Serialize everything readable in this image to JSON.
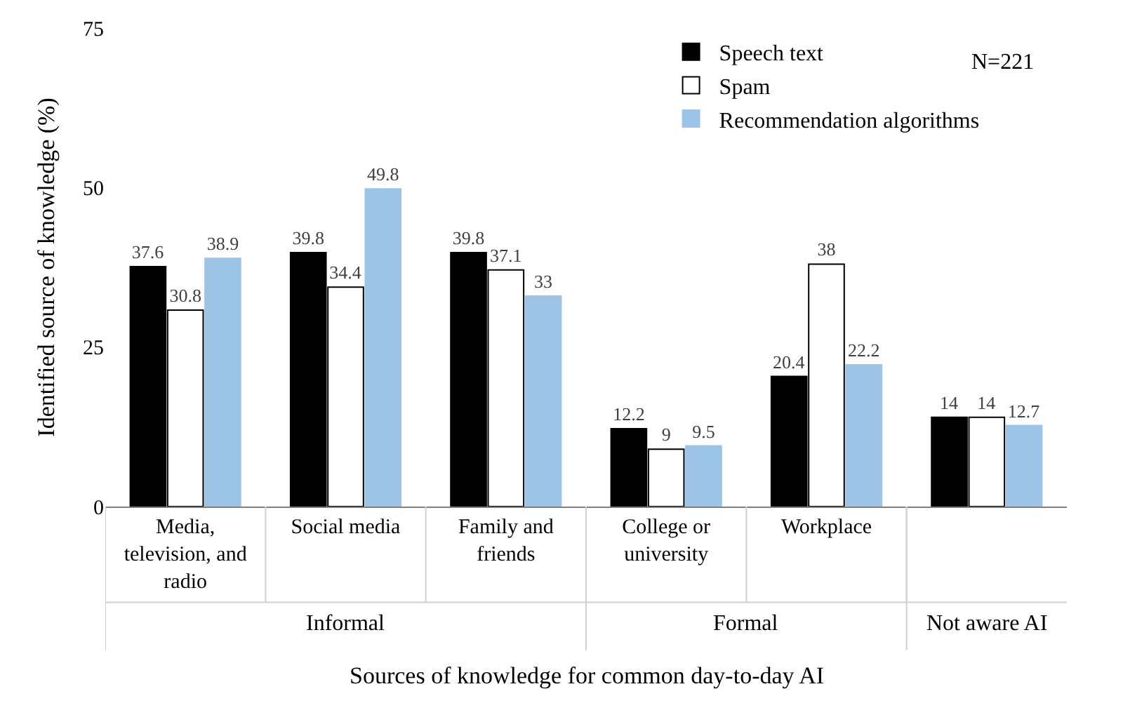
{
  "chart_data": {
    "type": "bar",
    "xlabel": "Sources of knowledge for common day-to-day AI",
    "ylabel": "Identified source of knowledge (%)",
    "categories": [
      "Media, television, and radio",
      "Social media",
      "Family and friends",
      "College or university",
      "Workplace",
      null
    ],
    "series": [
      {
        "name": "Speech text",
        "color": "#000000",
        "values": [
          37.6,
          39.8,
          39.8,
          12.2,
          20.4,
          14
        ]
      },
      {
        "name": "Spam",
        "color": "#ffffff",
        "values": [
          30.8,
          34.4,
          37.1,
          9,
          38,
          14
        ]
      },
      {
        "name": "Recommendation algorithms",
        "color": "#9dc3e6",
        "values": [
          38.9,
          49.8,
          33,
          9.5,
          22.2,
          12.7
        ]
      }
    ],
    "annotations": [
      "N=221",
      "Informal",
      "Formal",
      "Not aware AI"
    ],
    "ylim": [
      0,
      75
    ],
    "yticks": [
      0,
      25,
      50,
      75
    ],
    "legend": "top right",
    "data_labels": true
  }
}
